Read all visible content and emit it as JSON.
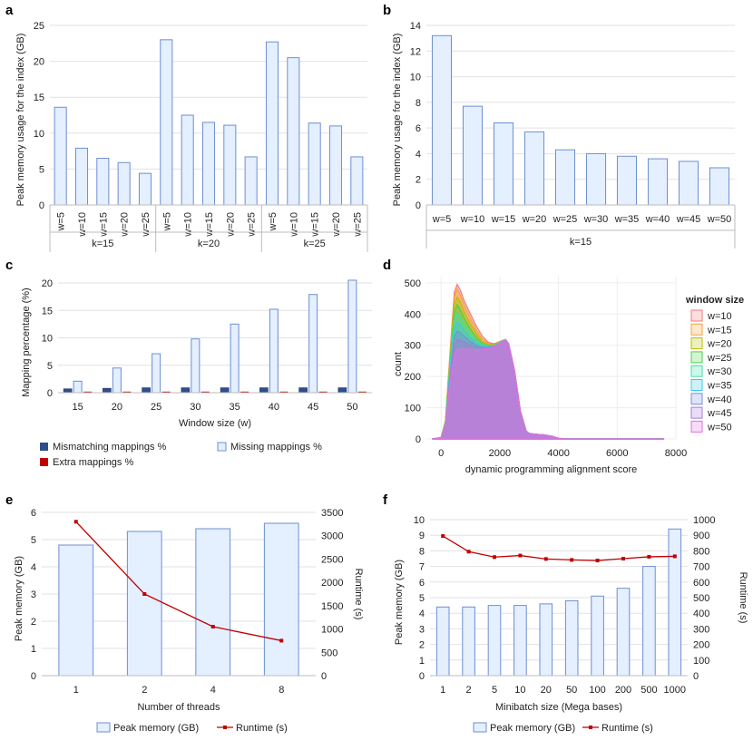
{
  "panels": [
    {
      "id": "a",
      "letter": "a"
    },
    {
      "id": "b",
      "letter": "b"
    },
    {
      "id": "c",
      "letter": "c"
    },
    {
      "id": "d",
      "letter": "d"
    },
    {
      "id": "e",
      "letter": "e"
    },
    {
      "id": "f",
      "letter": "f"
    }
  ],
  "chart_data": [
    {
      "id": "a",
      "type": "bar",
      "ylabel": "Peak memory usage for the index  (GB)",
      "ylim": [
        0,
        25
      ],
      "yticks": [
        0,
        5,
        10,
        15,
        20,
        25
      ],
      "groups": [
        {
          "label": "k=15",
          "categories": [
            "w=5",
            "w=10",
            "w=15",
            "w=20",
            "w=25"
          ],
          "values": [
            13.6,
            7.9,
            6.5,
            5.9,
            4.4
          ]
        },
        {
          "label": "k=20",
          "categories": [
            "w=5",
            "w=10",
            "w=15",
            "w=20",
            "w=25"
          ],
          "values": [
            23.0,
            12.5,
            11.5,
            11.1,
            6.7
          ]
        },
        {
          "label": "k=25",
          "categories": [
            "w=5",
            "w=10",
            "w=15",
            "w=20",
            "w=25"
          ],
          "values": [
            22.7,
            20.5,
            11.4,
            11.0,
            6.7
          ]
        }
      ]
    },
    {
      "id": "b",
      "type": "bar",
      "ylabel": "Peak memory  usage for the index  (GB)",
      "ylim": [
        0,
        14
      ],
      "yticks": [
        0,
        2,
        4,
        6,
        8,
        10,
        12,
        14
      ],
      "categories": [
        "w=5",
        "w=10",
        "w=15",
        "w=20",
        "w=25",
        "w=30",
        "w=35",
        "w=40",
        "w=45",
        "w=50"
      ],
      "values": [
        13.2,
        7.7,
        6.4,
        5.7,
        4.3,
        4.0,
        3.8,
        3.6,
        3.4,
        2.9
      ],
      "group_label": "k=15"
    },
    {
      "id": "c",
      "type": "bar",
      "xlabel": "Window size (w)",
      "ylabel": "Mapping percentage (%)",
      "ylim": [
        0,
        20
      ],
      "yticks": [
        0,
        5,
        10,
        15,
        20
      ],
      "categories": [
        "15",
        "20",
        "25",
        "30",
        "35",
        "40",
        "45",
        "50"
      ],
      "series": [
        {
          "name": "Mismatching mappings %",
          "color": "#2e4d8c",
          "values": [
            0.7,
            0.8,
            0.9,
            0.9,
            0.9,
            0.9,
            0.9,
            0.9
          ]
        },
        {
          "name": "Missing mappings %",
          "color": "#e4efff",
          "values": [
            2.1,
            4.5,
            7.1,
            9.8,
            12.5,
            15.2,
            17.9,
            20.5
          ]
        },
        {
          "name": "Extra mappings %",
          "color": "#c00000",
          "values": [
            0.05,
            0.05,
            0.05,
            0.1,
            0.1,
            0.15,
            0.15,
            0.2
          ]
        }
      ]
    },
    {
      "id": "d",
      "type": "area",
      "xlabel": "dynamic programming alignment score",
      "ylabel": "count",
      "xlim": [
        -500,
        8000
      ],
      "ylim": [
        0,
        520
      ],
      "xticks": [
        0,
        2000,
        4000,
        6000,
        8000
      ],
      "yticks": [
        0,
        100,
        200,
        300,
        400,
        500
      ],
      "legend_title": "window size",
      "x": [
        -300,
        0,
        150,
        300,
        450,
        550,
        650,
        800,
        1000,
        1200,
        1400,
        1600,
        1800,
        2000,
        2100,
        2200,
        2300,
        2500,
        2700,
        2900,
        3000,
        3200,
        3500,
        3800,
        4000,
        4200,
        5000,
        6000,
        7000,
        7600
      ],
      "series": [
        {
          "name": "w=10",
          "color": "#f27a7a",
          "values": [
            0,
            4,
            60,
            270,
            470,
            495,
            478,
            440,
            400,
            362,
            330,
            310,
            305,
            312,
            316,
            318,
            305,
            220,
            90,
            25,
            18,
            15,
            13,
            8,
            2,
            0,
            0,
            0,
            0,
            0
          ]
        },
        {
          "name": "w=15",
          "color": "#f2a33a",
          "values": [
            0,
            4,
            58,
            260,
            455,
            480,
            462,
            425,
            385,
            350,
            320,
            305,
            303,
            310,
            315,
            318,
            305,
            220,
            90,
            25,
            18,
            15,
            13,
            8,
            2,
            0,
            0,
            0,
            0,
            0
          ]
        },
        {
          "name": "w=20",
          "color": "#b8c000",
          "values": [
            0,
            4,
            55,
            250,
            430,
            455,
            440,
            405,
            368,
            338,
            312,
            302,
            301,
            309,
            315,
            318,
            305,
            220,
            90,
            25,
            18,
            15,
            13,
            8,
            2,
            0,
            0,
            0,
            0,
            0
          ]
        },
        {
          "name": "w=25",
          "color": "#4cd24c",
          "values": [
            0,
            4,
            52,
            238,
            405,
            430,
            415,
            385,
            352,
            326,
            306,
            300,
            300,
            308,
            314,
            318,
            305,
            220,
            90,
            25,
            18,
            15,
            13,
            8,
            2,
            0,
            0,
            0,
            0,
            0
          ]
        },
        {
          "name": "w=30",
          "color": "#3ee0a8",
          "values": [
            0,
            4,
            50,
            225,
            380,
            402,
            390,
            365,
            338,
            316,
            302,
            298,
            299,
            307,
            314,
            318,
            305,
            220,
            90,
            25,
            18,
            15,
            13,
            8,
            2,
            0,
            0,
            0,
            0,
            0
          ]
        },
        {
          "name": "w=35",
          "color": "#3cc8e8",
          "values": [
            0,
            4,
            48,
            212,
            352,
            375,
            365,
            345,
            325,
            308,
            298,
            296,
            298,
            306,
            313,
            318,
            305,
            220,
            90,
            25,
            18,
            15,
            13,
            8,
            2,
            0,
            0,
            0,
            0,
            0
          ]
        },
        {
          "name": "w=40",
          "color": "#7a8ed8",
          "values": [
            0,
            4,
            46,
            200,
            325,
            345,
            340,
            328,
            312,
            300,
            294,
            294,
            297,
            305,
            313,
            318,
            305,
            220,
            90,
            25,
            18,
            15,
            13,
            8,
            2,
            0,
            0,
            0,
            0,
            0
          ]
        },
        {
          "name": "w=45",
          "color": "#a87ad8",
          "values": [
            0,
            4,
            44,
            188,
            298,
            318,
            316,
            310,
            300,
            293,
            290,
            292,
            296,
            304,
            312,
            318,
            305,
            220,
            90,
            25,
            18,
            15,
            13,
            8,
            2,
            0,
            0,
            0,
            0,
            0
          ]
        },
        {
          "name": "w=50",
          "color": "#e070e0",
          "values": [
            0,
            4,
            42,
            175,
            270,
            285,
            288,
            288,
            287,
            286,
            287,
            290,
            295,
            303,
            312,
            318,
            305,
            220,
            90,
            25,
            18,
            15,
            13,
            8,
            2,
            0,
            0,
            0,
            0,
            0
          ]
        }
      ]
    },
    {
      "id": "e",
      "type": "bar",
      "xlabel": "Number of threads",
      "ylabel": "Peak memory (GB)",
      "y2label": "Runtime (s)",
      "ylim": [
        0,
        6
      ],
      "y2lim": [
        0,
        3500
      ],
      "yticks": [
        0,
        1,
        2,
        3,
        4,
        5,
        6
      ],
      "y2ticks": [
        0,
        500,
        1000,
        1500,
        2000,
        2500,
        3000,
        3500
      ],
      "categories": [
        "1",
        "2",
        "4",
        "8"
      ],
      "series": [
        {
          "name": "Peak  memory (GB)",
          "kind": "bar",
          "values": [
            4.8,
            5.3,
            5.4,
            5.6
          ]
        },
        {
          "name": "Runtime (s)",
          "kind": "line",
          "axis": "right",
          "color": "#c00000",
          "values": [
            3300,
            1750,
            1050,
            750
          ]
        }
      ]
    },
    {
      "id": "f",
      "type": "bar",
      "xlabel": "Minibatch size (Mega bases)",
      "ylabel": "Peak memory  (GB)",
      "y2label": "Runtime (s)",
      "ylim": [
        0,
        10
      ],
      "y2lim": [
        0,
        1000
      ],
      "yticks": [
        0,
        1,
        2,
        3,
        4,
        5,
        6,
        7,
        8,
        9,
        10
      ],
      "y2ticks": [
        0,
        100,
        200,
        300,
        400,
        500,
        600,
        700,
        800,
        900,
        1000
      ],
      "categories": [
        "1",
        "2",
        "5",
        "10",
        "20",
        "50",
        "100",
        "200",
        "500",
        "1000"
      ],
      "series": [
        {
          "name": "Peak memory (GB)",
          "kind": "bar",
          "values": [
            4.4,
            4.4,
            4.5,
            4.5,
            4.6,
            4.8,
            5.1,
            5.6,
            7.0,
            9.4
          ]
        },
        {
          "name": "Runtime (s)",
          "kind": "line",
          "axis": "right",
          "color": "#c00000",
          "values": [
            895,
            795,
            760,
            770,
            748,
            742,
            738,
            750,
            762,
            765
          ]
        }
      ]
    }
  ]
}
